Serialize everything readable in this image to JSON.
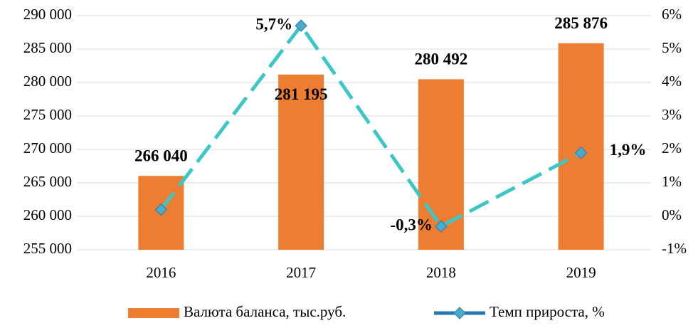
{
  "chart_data": {
    "type": "bar-line",
    "categories": [
      "2016",
      "2017",
      "2018",
      "2019"
    ],
    "series": [
      {
        "name": "Валюта баланса, тыс.руб.",
        "type": "bar",
        "color": "#ED7D31",
        "values": [
          266040,
          281195,
          280492,
          285876
        ],
        "value_labels": [
          "266 040",
          "281 195",
          "280 492",
          "285 876"
        ]
      },
      {
        "name": "Темп прироста, %",
        "type": "line",
        "axis": "y2",
        "color": "#3CC6C6",
        "marker_color": "#4BACC6",
        "values": [
          0.2,
          5.7,
          -0.3,
          1.9
        ],
        "value_labels": [
          null,
          "5,7%",
          "-0,3%",
          "1,9%"
        ]
      }
    ],
    "ylim": [
      255000,
      290000
    ],
    "yticks": [
      {
        "value": 255000,
        "label": "255 000"
      },
      {
        "value": 260000,
        "label": "260 000"
      },
      {
        "value": 265000,
        "label": "265 000"
      },
      {
        "value": 270000,
        "label": "270 000"
      },
      {
        "value": 275000,
        "label": "275 000"
      },
      {
        "value": 280000,
        "label": "280 000"
      },
      {
        "value": 285000,
        "label": "285 000"
      },
      {
        "value": 290000,
        "label": "290 000"
      }
    ],
    "y2lim": [
      -1,
      6
    ],
    "y2ticks": [
      {
        "value": -1,
        "label": "-1%"
      },
      {
        "value": 0,
        "label": "0%"
      },
      {
        "value": 1,
        "label": "1%"
      },
      {
        "value": 2,
        "label": "2%"
      },
      {
        "value": 3,
        "label": "3%"
      },
      {
        "value": 4,
        "label": "4%"
      },
      {
        "value": 5,
        "label": "5%"
      },
      {
        "value": 6,
        "label": "6%"
      }
    ],
    "legend": "bottom"
  }
}
